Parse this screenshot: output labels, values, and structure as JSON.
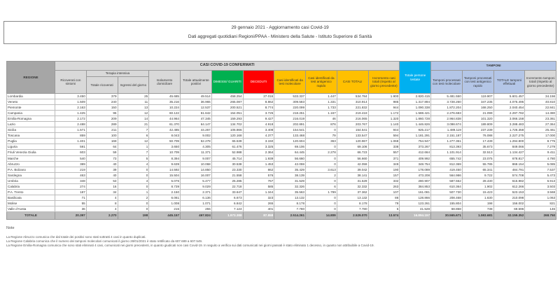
{
  "title": "29 gennaio 2021 - Aggiornamento casi Covid-19",
  "subtitle": "Dati aggregati quotidiani Regioni/PPAA - Ministero della Salute - Istituto Superiore di Sanità",
  "headers": {
    "regione": "REGIONE",
    "casi_confermati": "CASI COVID-19 CONFERMATI",
    "tamponi": "TAMPONI",
    "terapia_intensiva": "Terapia intensiva",
    "ricoverati": "Ricoverati con sintomi",
    "ti_totale": "Totale ricoverati",
    "ti_ingressi": "Ingressi del giorno",
    "isolamento": "Isolamento domiciliare",
    "totale_positivi": "Totale attualmente positivi",
    "dimessi": "DIMESSI/ GUARITI",
    "deceduti": "DECEDUTI",
    "casi_molecolare": "Casi identificati da test molecolare",
    "casi_antigenico": "Casi identificati da test antigenico rapido",
    "casi_totali": "CASI TOTALI",
    "incremento_casi": "Incremento casi totali (rispetto al giorno precedente)",
    "persone_testate": "Totale persone testate",
    "tamponi_molecolare": "Tamponi processati con test molecolare",
    "tamponi_antigenico": "Tamponi processati con test antigenico rapido",
    "tamponi_totale": "TOTALE tamponi effettuati",
    "incremento_tamponi": "Incremento tamponi totali (rispetto al giorno precedente)"
  },
  "rows": [
    [
      "Lombardia",
      "3.450",
      "379",
      "25",
      "45.685",
      "49.514",
      "458.254",
      "27.016",
      "533.337",
      "1.447",
      "534.784",
      "1.900",
      "2.820.415",
      "5.481.550",
      "119.907",
      "5.601.457",
      "34.156"
    ],
    [
      "Veneto",
      "1.509",
      "240",
      "11",
      "35.216",
      "36.965",
      "265.087",
      "8.862",
      "309.583",
      "1.331",
      "310.914",
      "985",
      "1.317.894",
      "3.728.260",
      "347.235",
      "4.075.495",
      "40.810"
    ],
    [
      "Piemonte",
      "2.163",
      "150",
      "13",
      "10.224",
      "12.537",
      "200.521",
      "8.774",
      "220.099",
      "1.733",
      "221.832",
      "944",
      "1.090.338",
      "1.872.204",
      "168.250",
      "2.040.454",
      "22.841"
    ],
    [
      "Campania",
      "1.425",
      "95",
      "12",
      "60.122",
      "61.642",
      "154.051",
      "3.725",
      "218.251",
      "1.167",
      "219.418",
      "1.172",
      "1.588.421",
      "2.276.683",
      "21.099",
      "2.297.782",
      "14.380"
    ],
    [
      "Emilia-Romagna",
      "2.172",
      "209",
      "14",
      "44.964",
      "47.345",
      "159.293",
      "9.427",
      "216.019",
      "46",
      "216.065",
      "1.320",
      "1.860.728",
      "2.964.838",
      "101.320",
      "3.066.158",
      "23.361"
    ],
    [
      "Lazio",
      "2.488",
      "289",
      "21",
      "61.370",
      "64.147",
      "134.702",
      "4.918",
      "202.891",
      "876",
      "203.767",
      "1.140",
      "1.446.826",
      "3.098.674",
      "189.809",
      "3.288.483",
      "27.364"
    ],
    [
      "Sicilia",
      "1.571",
      "211",
      "7",
      "42.485",
      "44.267",
      "106.866",
      "3.408",
      "154.541",
      "0",
      "154.541",
      "944",
      "925.217",
      "1.489.119",
      "237.239",
      "1.726.358",
      "25.461"
    ],
    [
      "Toscana",
      "859",
      "100",
      "6",
      "8.043",
      "9.002",
      "120.168",
      "4.377",
      "133.468",
      "79",
      "133.547",
      "594",
      "1.181.291",
      "2.151.187",
      "76.088",
      "2.227.275",
      "17.000"
    ],
    [
      "Puglia",
      "1.401",
      "168",
      "12",
      "50.709",
      "52.278",
      "65.539",
      "3.150",
      "120.604",
      "363",
      "120.967",
      "1.068",
      "754.947",
      "1.277.361",
      "17.439",
      "1.294.800",
      "8.775"
    ],
    [
      "Liguria",
      "591",
      "64",
      "1",
      "3.650",
      "4.305",
      "61.476",
      "3.325",
      "69.106",
      "0",
      "69.106",
      "338",
      "373.267",
      "813.393",
      "35.673",
      "849.066",
      "7.279"
    ],
    [
      "Friuli Venezia Giulia",
      "603",
      "59",
      "7",
      "10.709",
      "11.371",
      "52.988",
      "2.364",
      "64.445",
      "2.278",
      "66.723",
      "557",
      "412.664",
      "1.101.914",
      "32.513",
      "1.134.427",
      "9.411"
    ],
    [
      "Marche",
      "540",
      "73",
      "5",
      "8.394",
      "9.007",
      "45.714",
      "1.939",
      "56.660",
      "0",
      "56.660",
      "371",
      "409.992",
      "655.742",
      "23.075",
      "678.817",
      "4.780"
    ],
    [
      "Abruzzo",
      "389",
      "40",
      "4",
      "9.639",
      "10.068",
      "30.538",
      "1.453",
      "42.059",
      "0",
      "42.059",
      "349",
      "348.754",
      "812.369",
      "55.785",
      "868.154",
      "5.085"
    ],
    [
      "P.A. Bolzano",
      "219",
      "39",
      "0",
      "14.592",
      "14.850",
      "23.330",
      "862",
      "35.429",
      "3.613",
      "39.042",
      "190",
      "178.089",
      "419.450",
      "65.341",
      "484.791",
      "7.537"
    ],
    [
      "Sardegna",
      "463",
      "40",
      "0",
      "15.504",
      "16.007",
      "21.558",
      "576",
      "38.139",
      "2",
      "38.141",
      "157",
      "473.208",
      "564.986",
      "9.722",
      "574.708",
      "5.473"
    ],
    [
      "Umbria",
      "348",
      "53",
      "4",
      "5.076",
      "5.477",
      "25.285",
      "767",
      "31.529",
      "0",
      "31.529",
      "332",
      "280.907",
      "587.552",
      "28.430",
      "615.982",
      "6.913"
    ],
    [
      "Calabria",
      "274",
      "16",
      "0",
      "8.739",
      "9.029",
      "22.718",
      "585",
      "32.326",
      "6",
      "32.332",
      "263",
      "384.853",
      "610.364",
      "1.902",
      "612.266",
      "3.503"
    ],
    [
      "P.A. Trento",
      "187",
      "34",
      "1",
      "2.150",
      "2.371",
      "33.647",
      "1.344",
      "35.563",
      "1.799",
      "37.362",
      "107",
      "161.081",
      "507.730",
      "15.423",
      "523.153",
      "3.568"
    ],
    [
      "Basilicata",
      "71",
      "4",
      "2",
      "6.061",
      "6.136",
      "6.673",
      "323",
      "13.132",
      "0",
      "13.132",
      "86",
      "128.866",
      "208.468",
      "1.630",
      "210.098",
      "1.063"
    ],
    [
      "Molise",
      "55",
      "8",
      "0",
      "1.008",
      "1.071",
      "6.842",
      "265",
      "8.178",
      "0",
      "8.178",
      "79",
      "123.261",
      "155.804",
      "198",
      "156.002",
      "821"
    ],
    [
      "Valle d'Aosta",
      "36",
      "4",
      "0",
      "215",
      "255",
      "7.124",
      "401",
      "7.780",
      "0",
      "7.780",
      "5",
      "41.528",
      "68.858",
      "738",
      "69.596",
      "146"
    ]
  ],
  "total": [
    "TOTALE",
    "20.397",
    "2.270",
    "198",
    "445.157",
    "467.824",
    "1.973.388",
    "87.858",
    "2.514.261",
    "14.809",
    "2.529.070",
    "13.574",
    "16.894.157",
    "30.565.671",
    "1.593.681",
    "32.159.352",
    "268.750"
  ],
  "notes": {
    "title": "Note",
    "items": [
      "La Regione Abruzzo comunica che dal totale dei positivi sono stati sottratti 4 casi in quanto duplicati.",
      "La Regione Calabria comunica che il numero dei tamponi molecolari comunicati il giorno 28/01/2021 è stato rettificato da 607.689 a 607.549.",
      "La Regione Emilia-Romagna comunica che sono stati eliminati 4 casi, comunicati nei giorni precedenti, in quanto giudicati non casi Covid-19. In seguito a verifica sui dati comunicati nei giorni passati è stato eliminato 1 decesso, in quanto non attribuibile a Covid-19."
    ]
  },
  "colors": {
    "header_gray": "#a6a6a6",
    "header_light": "#d9d9d9",
    "dimessi": "#00b050",
    "deceduti": "#ff0000",
    "casi": "#ffc000",
    "persone_testate": "#00b0f0",
    "tamponi": "#b4c6e7"
  }
}
